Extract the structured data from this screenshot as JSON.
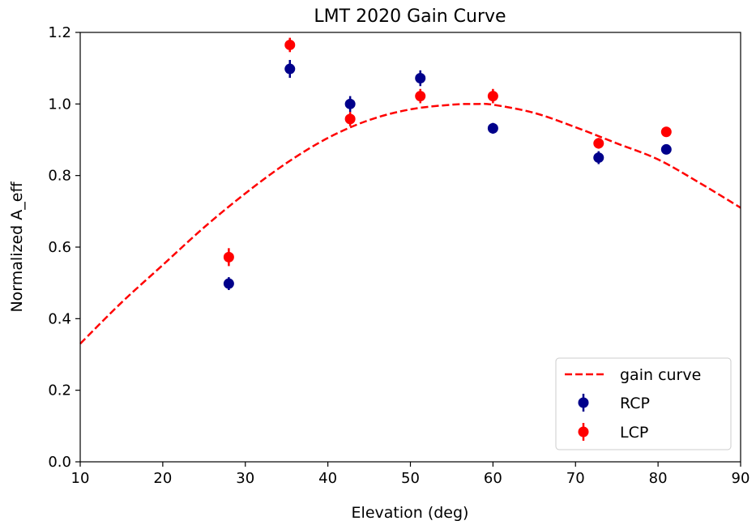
{
  "chart_data": {
    "type": "scatter",
    "title": "LMT 2020 Gain Curve",
    "xlabel": "Elevation (deg)",
    "ylabel": "Normalized A_eff",
    "xlim": [
      10,
      90
    ],
    "ylim": [
      0,
      1.2
    ],
    "xticks": [
      10,
      20,
      30,
      40,
      50,
      60,
      70,
      80,
      90
    ],
    "yticks": [
      0.0,
      0.2,
      0.4,
      0.6,
      0.8,
      1.0,
      1.2
    ],
    "xtick_labels": [
      "10",
      "20",
      "30",
      "40",
      "50",
      "60",
      "70",
      "80",
      "90"
    ],
    "ytick_labels": [
      "0.0",
      "0.2",
      "0.4",
      "0.6",
      "0.8",
      "1.0",
      "1.2"
    ],
    "grid": false,
    "legend_position": "bottom-right",
    "gain_curve": {
      "name": "gain curve",
      "color": "#ff0000",
      "style": "dashed",
      "x": [
        10,
        15,
        20,
        25,
        30,
        35,
        40,
        45,
        50,
        55,
        58,
        60,
        65,
        70,
        75,
        80,
        85,
        90
      ],
      "y": [
        0.33,
        0.445,
        0.55,
        0.655,
        0.75,
        0.835,
        0.905,
        0.955,
        0.985,
        0.998,
        1.0,
        0.998,
        0.975,
        0.935,
        0.89,
        0.845,
        0.78,
        0.71
      ]
    },
    "series": [
      {
        "name": "RCP",
        "color": "#00008b",
        "x": [
          28,
          35.4,
          42.7,
          51.2,
          60,
          72.8,
          81
        ],
        "y": [
          0.498,
          1.098,
          1.0,
          1.072,
          0.932,
          0.85,
          0.873
        ],
        "yerr": [
          0.018,
          0.025,
          0.022,
          0.022,
          0.015,
          0.018,
          0.01
        ]
      },
      {
        "name": "LCP",
        "color": "#ff0000",
        "x": [
          28,
          35.4,
          42.7,
          51.2,
          60,
          72.8,
          81
        ],
        "y": [
          0.572,
          1.165,
          0.958,
          1.022,
          1.022,
          0.89,
          0.922
        ],
        "yerr": [
          0.025,
          0.02,
          0.02,
          0.02,
          0.02,
          0.015,
          0.01
        ]
      }
    ]
  }
}
